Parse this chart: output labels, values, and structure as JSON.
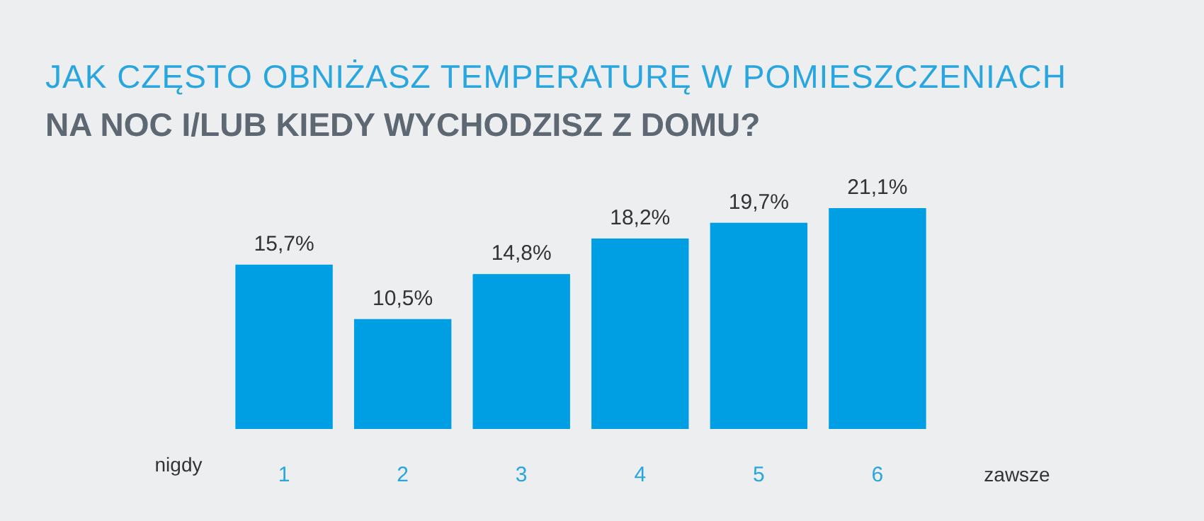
{
  "chart_data": {
    "type": "bar",
    "title": "JAK CZĘSTO OBNIŻASZ TEMPERATURĘ W POMIESZCZENIACH",
    "subtitle": "NA NOC I/LUB KIEDY WYCHODZISZ Z DOMU?",
    "categories": [
      "1",
      "2",
      "3",
      "4",
      "5",
      "6"
    ],
    "values": [
      15.7,
      10.5,
      14.8,
      18.2,
      19.7,
      21.1
    ],
    "value_labels": [
      "15,7%",
      "10,5%",
      "14,8%",
      "18,2%",
      "19,7%",
      "21,1%"
    ],
    "color": "#009fe3",
    "annotations": [
      "nigdy",
      "zawsze"
    ]
  }
}
